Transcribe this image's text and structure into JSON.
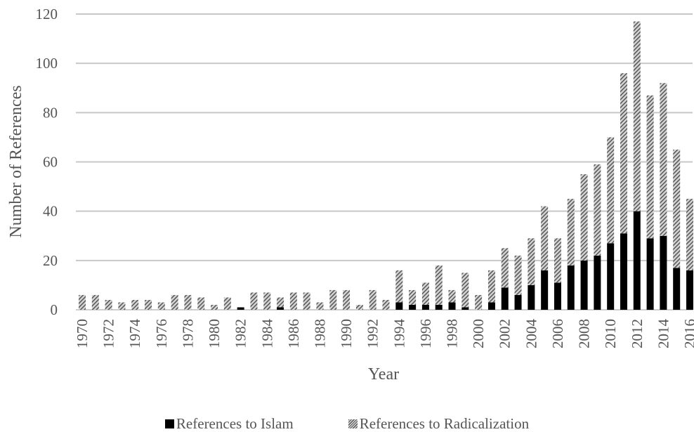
{
  "chart_data": {
    "type": "bar",
    "stacked": true,
    "title": "",
    "xlabel": "Year",
    "ylabel": "Number of References",
    "ylim": [
      0,
      120
    ],
    "yticks": [
      0,
      20,
      40,
      60,
      80,
      100,
      120
    ],
    "grid": true,
    "legend_position": "bottom",
    "categories": [
      "1970",
      "1971",
      "1972",
      "1973",
      "1974",
      "1975",
      "1976",
      "1977",
      "1978",
      "1979",
      "1980",
      "1981",
      "1982",
      "1983",
      "1984",
      "1985",
      "1986",
      "1987",
      "1988",
      "1989",
      "1990",
      "1991",
      "1992",
      "1993",
      "1994",
      "1995",
      "1996",
      "1997",
      "1998",
      "1999",
      "2000",
      "2001",
      "2002",
      "2003",
      "2004",
      "2005",
      "2006",
      "2007",
      "2008",
      "2009",
      "2010",
      "2011",
      "2012",
      "2013",
      "2014",
      "2015",
      "2016"
    ],
    "xtick_labels": [
      "1970",
      "",
      "1972",
      "",
      "1974",
      "",
      "1976",
      "",
      "1978",
      "",
      "1980",
      "",
      "1982",
      "",
      "1984",
      "",
      "1986",
      "",
      "1988",
      "",
      "1990",
      "",
      "1992",
      "",
      "1994",
      "",
      "1996",
      "",
      "1998",
      "",
      "2000",
      "",
      "2002",
      "",
      "2004",
      "",
      "2006",
      "",
      "2008",
      "",
      "2010",
      "",
      "2012",
      "",
      "2014",
      "",
      "2016"
    ],
    "series": [
      {
        "name": "References to Islam",
        "color": "#000000",
        "pattern": "solid",
        "values": [
          0,
          0,
          0,
          0,
          0,
          0,
          0,
          0,
          0,
          0,
          0,
          0,
          1,
          0,
          0,
          1,
          0,
          0,
          0,
          0,
          0,
          0,
          0,
          0,
          3,
          2,
          2,
          2,
          3,
          1,
          0,
          3,
          9,
          6,
          10,
          16,
          11,
          18,
          20,
          22,
          27,
          31,
          40,
          29,
          30,
          17,
          16
        ]
      },
      {
        "name": "References to Radicalization",
        "color": "#888888",
        "pattern": "hatched",
        "values": [
          6,
          6,
          4,
          3,
          4,
          4,
          3,
          6,
          6,
          5,
          2,
          5,
          0,
          7,
          7,
          4,
          7,
          7,
          3,
          8,
          8,
          2,
          8,
          4,
          13,
          6,
          9,
          16,
          5,
          14,
          6,
          13,
          16,
          16,
          19,
          26,
          18,
          27,
          35,
          37,
          43,
          65,
          77,
          58,
          62,
          48,
          29
        ]
      }
    ]
  }
}
